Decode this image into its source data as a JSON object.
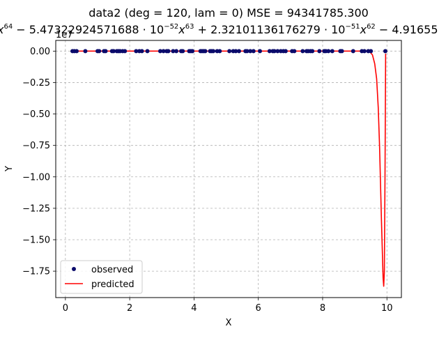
{
  "chart_data": {
    "type": "scatter",
    "title": "data2  (deg = 120, lam = 0) MSE = 94341785.300",
    "subtitle_parts": {
      "lead": "x",
      "lead_exp": "64",
      "t1": " − 5.47322924571688 · 10",
      "t1_exp": "−52",
      "t2": "x",
      "t2_exp": "63",
      "t3": " + 2.32101136176279 · 10",
      "t3_exp": "−51",
      "t4": "x",
      "t4_exp": "62",
      "t5": " − 4.91655"
    },
    "xlabel": "X",
    "ylabel": "Y",
    "y_offset_label": "1e7",
    "xlim": [
      -0.3,
      10.45
    ],
    "ylim": [
      -1.96,
      0.085
    ],
    "x_ticks": [
      0,
      2,
      4,
      6,
      8,
      10
    ],
    "x_tick_labels": [
      "0",
      "2",
      "4",
      "6",
      "8",
      "10"
    ],
    "y_ticks": [
      0.0,
      -0.25,
      -0.5,
      -0.75,
      -1.0,
      -1.25,
      -1.5,
      -1.75
    ],
    "y_tick_labels": [
      "0.00",
      "−0.25",
      "−0.50",
      "−0.75",
      "−1.00",
      "−1.25",
      "−1.50",
      "−1.75"
    ],
    "grid": true,
    "legend_position": "lower-left",
    "series": [
      {
        "name": "observed",
        "kind": "scatter",
        "color": "#0b0b6b",
        "x": [
          0.22,
          0.28,
          0.35,
          0.62,
          1.0,
          1.05,
          1.2,
          1.25,
          1.45,
          1.5,
          1.6,
          1.65,
          1.7,
          1.78,
          1.85,
          2.2,
          2.3,
          2.38,
          2.55,
          2.95,
          3.05,
          3.15,
          3.2,
          3.35,
          3.45,
          3.6,
          3.65,
          3.85,
          3.9,
          3.95,
          4.2,
          4.25,
          4.3,
          4.35,
          4.5,
          4.55,
          4.6,
          4.72,
          4.8,
          5.1,
          5.22,
          5.3,
          5.4,
          5.6,
          5.65,
          5.75,
          5.85,
          6.05,
          6.35,
          6.45,
          6.5,
          6.6,
          6.7,
          6.78,
          6.85,
          7.05,
          7.12,
          7.38,
          7.5,
          7.55,
          7.62,
          7.68,
          7.9,
          8.05,
          8.1,
          8.18,
          8.3,
          8.55,
          8.6,
          8.95,
          9.22,
          9.3,
          9.42,
          9.5,
          9.95
        ],
        "y": [
          0,
          0,
          0,
          0,
          0,
          0,
          0,
          0,
          0,
          0,
          0,
          0,
          0,
          0,
          0,
          0,
          0,
          0,
          0,
          0,
          0,
          0,
          0,
          0,
          0,
          0,
          0,
          0,
          0,
          0,
          0,
          0,
          0,
          0,
          0,
          0,
          0,
          0,
          0,
          0,
          0,
          0,
          0,
          0,
          0,
          0,
          0,
          0,
          0,
          0,
          0,
          0,
          0,
          0,
          0,
          0,
          0,
          0,
          0,
          0,
          0,
          0,
          0,
          0,
          0,
          0,
          0,
          0,
          0,
          0,
          0,
          0,
          0,
          0,
          0
        ]
      },
      {
        "name": "predicted",
        "kind": "line",
        "color": "#ff0000",
        "x": [
          0.22,
          9.45,
          9.55,
          9.62,
          9.68,
          9.73,
          9.77,
          9.8,
          9.83,
          9.86,
          9.88,
          9.9,
          9.92,
          9.94,
          9.96
        ],
        "y": [
          0,
          0,
          -0.03,
          -0.1,
          -0.22,
          -0.45,
          -0.75,
          -1.05,
          -1.35,
          -1.62,
          -1.8,
          -1.87,
          -1.75,
          -1.0,
          -0.02
        ]
      }
    ]
  }
}
